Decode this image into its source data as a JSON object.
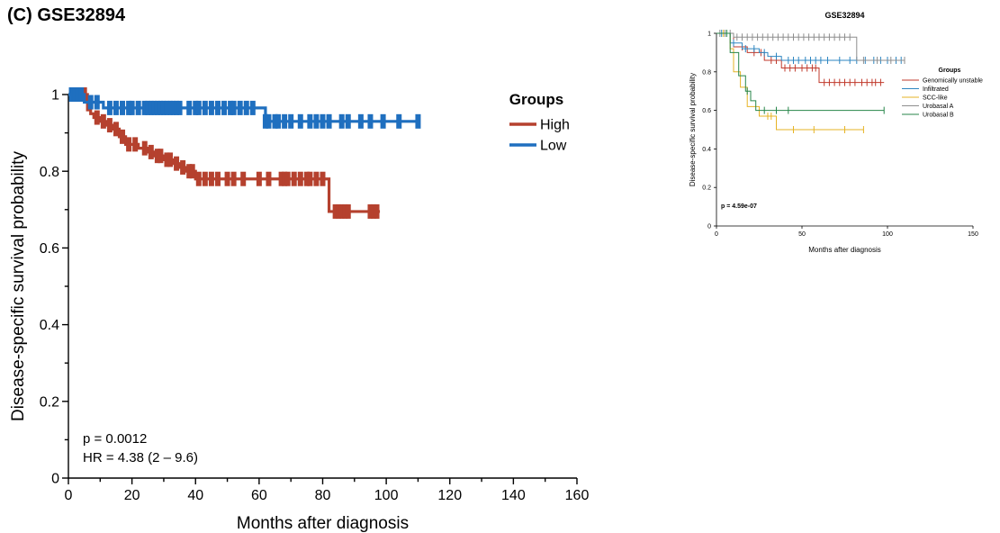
{
  "panel_label": "(C) GSE32894",
  "chart_data": [
    {
      "type": "line",
      "subtype": "kaplan-meier",
      "title": "",
      "xlabel": "Months after diagnosis",
      "ylabel": "Disease-specific survival probability",
      "xlim": [
        0,
        160
      ],
      "ylim": [
        0,
        1
      ],
      "x_ticks": [
        "0",
        "20",
        "40",
        "60",
        "80",
        "100",
        "120",
        "140",
        "160"
      ],
      "y_ticks": [
        "0",
        "0.2",
        "0.4",
        "0.6",
        "0.8",
        "1"
      ],
      "legend": {
        "title": "Groups",
        "position": "top-right"
      },
      "annotations": [
        "p = 0.0012",
        "HR = 4.38 (2 – 9.6)"
      ],
      "series": [
        {
          "name": "High",
          "color": "#b5412e",
          "steps": [
            [
              0,
              1
            ],
            [
              6,
              0.96
            ],
            [
              7,
              0.95
            ],
            [
              8,
              0.94
            ],
            [
              10,
              0.93
            ],
            [
              12,
              0.92
            ],
            [
              14,
              0.91
            ],
            [
              16,
              0.89
            ],
            [
              18,
              0.87
            ],
            [
              22,
              0.86
            ],
            [
              25,
              0.85
            ],
            [
              27,
              0.84
            ],
            [
              30,
              0.83
            ],
            [
              33,
              0.82
            ],
            [
              35,
              0.81
            ],
            [
              37,
              0.8
            ],
            [
              40,
              0.78
            ],
            [
              82,
              0.78
            ],
            [
              82,
              0.695
            ],
            [
              98,
              0.695
            ]
          ],
          "censor": [
            2,
            4,
            5,
            9,
            11,
            13,
            15,
            17,
            19,
            21,
            24,
            26,
            28,
            29,
            31,
            32,
            34,
            36,
            38,
            39,
            41,
            43,
            45,
            47,
            50,
            52,
            55,
            60,
            63,
            67,
            68,
            69,
            71,
            73,
            75,
            76,
            78,
            80,
            84,
            85,
            86,
            87,
            88,
            95,
            96,
            97
          ]
        },
        {
          "name": "Low",
          "color": "#1f6fbf",
          "steps": [
            [
              0,
              1
            ],
            [
              5,
              0.98
            ],
            [
              11,
              0.965
            ],
            [
              60,
              0.965
            ],
            [
              62,
              0.93
            ],
            [
              110,
              0.93
            ]
          ],
          "censor": [
            1,
            2,
            3,
            4,
            7,
            9,
            13,
            15,
            17,
            19,
            20,
            22,
            24,
            25,
            26,
            27,
            28,
            29,
            30,
            31,
            32,
            33,
            34,
            35,
            38,
            40,
            41,
            43,
            45,
            47,
            49,
            51,
            52,
            54,
            56,
            58,
            62,
            63,
            65,
            66,
            68,
            70,
            73,
            76,
            78,
            80,
            82,
            86,
            88,
            92,
            95,
            99,
            104,
            110
          ]
        }
      ]
    },
    {
      "type": "line",
      "subtype": "kaplan-meier",
      "title": "GSE32894",
      "xlabel": "Months after diagnosis",
      "ylabel": "Disease-specific survival probability",
      "xlim": [
        0,
        150
      ],
      "ylim": [
        0,
        1
      ],
      "x_ticks": [
        "0",
        "50",
        "100",
        "150"
      ],
      "y_ticks": [
        "0",
        "0.2",
        "0.4",
        "0.6",
        "0.8",
        "1"
      ],
      "legend": {
        "title": "Groups",
        "position": "right"
      },
      "annotations": [
        "p = 4.59e-07"
      ],
      "series": [
        {
          "name": "Genomically unstable",
          "color": "#c0392b",
          "steps": [
            [
              0,
              1
            ],
            [
              10,
              0.93
            ],
            [
              18,
              0.9
            ],
            [
              28,
              0.86
            ],
            [
              38,
              0.82
            ],
            [
              60,
              0.82
            ],
            [
              60,
              0.745
            ],
            [
              98,
              0.745
            ]
          ],
          "censor": [
            5,
            15,
            22,
            26,
            32,
            35,
            40,
            43,
            46,
            50,
            53,
            56,
            58,
            63,
            66,
            69,
            72,
            75,
            78,
            81,
            85,
            88,
            91,
            93,
            96
          ]
        },
        {
          "name": "Infiltrated",
          "color": "#2e86c1",
          "steps": [
            [
              0,
              1
            ],
            [
              8,
              0.95
            ],
            [
              15,
              0.92
            ],
            [
              25,
              0.9
            ],
            [
              30,
              0.88
            ],
            [
              38,
              0.86
            ],
            [
              108,
              0.86
            ]
          ],
          "censor": [
            3,
            10,
            17,
            22,
            28,
            35,
            42,
            45,
            48,
            52,
            55,
            58,
            61,
            65,
            72,
            78,
            82,
            87,
            92,
            96,
            100,
            105,
            108
          ]
        },
        {
          "name": "SCC-like",
          "color": "#e6b325",
          "steps": [
            [
              0,
              1
            ],
            [
              8,
              0.92
            ],
            [
              10,
              0.8
            ],
            [
              14,
              0.72
            ],
            [
              18,
              0.62
            ],
            [
              25,
              0.57
            ],
            [
              35,
              0.5
            ],
            [
              86,
              0.5
            ]
          ],
          "censor": [
            4,
            30,
            32,
            45,
            57,
            75,
            86
          ]
        },
        {
          "name": "Urobasal A",
          "color": "#8e8e8e",
          "steps": [
            [
              0,
              1
            ],
            [
              10,
              0.98
            ],
            [
              82,
              0.98
            ],
            [
              82,
              0.86
            ],
            [
              110,
              0.86
            ]
          ],
          "censor": [
            2,
            5,
            8,
            12,
            15,
            18,
            21,
            24,
            27,
            30,
            33,
            36,
            39,
            42,
            45,
            48,
            51,
            54,
            57,
            60,
            63,
            66,
            69,
            72,
            75,
            78,
            86,
            94,
            102,
            110
          ]
        },
        {
          "name": "Urobasal B",
          "color": "#27864a",
          "steps": [
            [
              0,
              1
            ],
            [
              8,
              0.9
            ],
            [
              13,
              0.78
            ],
            [
              17,
              0.7
            ],
            [
              20,
              0.65
            ],
            [
              23,
              0.6
            ],
            [
              98,
              0.6
            ]
          ],
          "censor": [
            6,
            18,
            28,
            35,
            42,
            98
          ]
        }
      ]
    }
  ]
}
